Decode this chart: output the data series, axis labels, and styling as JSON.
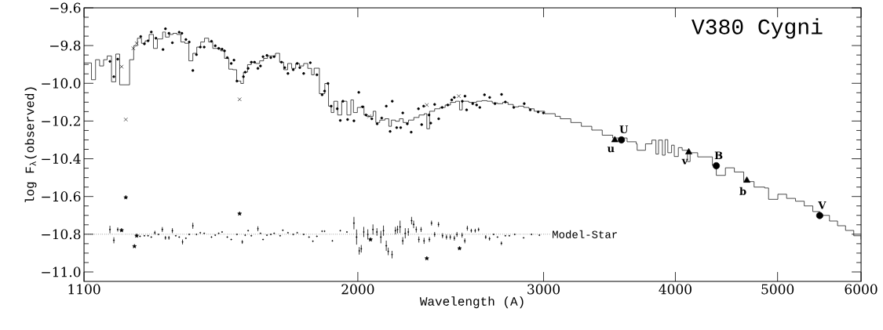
{
  "chart_data": {
    "type": "scatter",
    "title": "V380 Cygni",
    "xlabel": "Wavelength (A)",
    "ylabel": "log F$_{λ}$(observed)",
    "log": "x",
    "grid": false,
    "xlim": [
      1100,
      6000
    ],
    "xticks": [
      1100,
      2000,
      3000,
      4000,
      5000,
      6000
    ],
    "ylim": [
      -11.05,
      -9.6
    ],
    "yticks": [
      {
        "value": -9.6,
        "label": "−9.6"
      },
      {
        "value": -9.8,
        "label": "−9.8"
      },
      {
        "value": -10.0,
        "label": "−10.0"
      },
      {
        "value": -10.2,
        "label": "−10.2"
      },
      {
        "value": -10.4,
        "label": "−10.4"
      },
      {
        "value": -10.6,
        "label": "−10.6"
      },
      {
        "value": -10.8,
        "label": "−10.8"
      },
      {
        "value": -11.0,
        "label": "−11.0"
      }
    ],
    "ref_lines": [
      {
        "axis": "y",
        "value": -10.8,
        "label": "Model-Star",
        "line_style": "dotted",
        "color": "#000000"
      }
    ],
    "annotations": [
      {
        "text": "U",
        "x": 3556,
        "y": -10.3
      },
      {
        "text": "u",
        "x": 3505,
        "y": -10.301
      },
      {
        "text": "v",
        "x": 4119,
        "y": -10.365
      },
      {
        "text": "B",
        "x": 4374,
        "y": -10.437
      },
      {
        "text": "b",
        "x": 4676,
        "y": -10.515
      },
      {
        "text": "V",
        "x": 5482,
        "y": -10.701
      }
    ],
    "series": [
      {
        "type": "step",
        "color": "#000000",
        "line_style": "solid",
        "marker": "none",
        "x": [
          1100,
          1118,
          1128,
          1138,
          1148,
          1157,
          1168,
          1179,
          1189,
          1215,
          1226,
          1236,
          1247,
          1257,
          1268,
          1280,
          1291,
          1306,
          1314,
          1325,
          1336,
          1347,
          1359,
          1371,
          1383,
          1395,
          1407,
          1419,
          1431,
          1444,
          1457,
          1469,
          1482,
          1495,
          1509,
          1522,
          1535,
          1549,
          1558,
          1572,
          1585,
          1600,
          1614,
          1628,
          1642,
          1657,
          1671,
          1686,
          1701,
          1716,
          1731,
          1746,
          1761,
          1777,
          1793,
          1808,
          1818,
          1839,
          1861,
          1876,
          1887,
          1898,
          1914,
          1931,
          1953,
          1970,
          1981,
          1998,
          2015,
          2027,
          2039,
          2068,
          2080,
          2098,
          2122,
          2140,
          2152,
          2171,
          2190,
          2208,
          2234,
          2260,
          2286,
          2312,
          2325,
          2339,
          2365,
          2393,
          2420,
          2448,
          2476,
          2497,
          2512,
          2548,
          2592,
          2622,
          2652,
          2682,
          2713,
          2744,
          2776,
          2808,
          2840,
          2873,
          2906,
          2939,
          3007,
          3077,
          3112,
          3184,
          3258,
          3333,
          3410,
          3489,
          3600,
          3673,
          3680,
          3748,
          3801,
          3834,
          3856,
          3889,
          3912,
          3935,
          3968,
          3991,
          4026,
          4060,
          4107,
          4131,
          4200,
          4337,
          4374,
          4462,
          4550,
          4644,
          4750,
          4861,
          4903,
          5003,
          5100,
          5200,
          5300,
          5400,
          5482,
          5600,
          5700,
          5800,
          5905,
          6000
        ],
        "values": [
          -9.892,
          -9.981,
          -9.875,
          -9.908,
          -9.875,
          -9.855,
          -9.992,
          -9.845,
          -10.008,
          -9.875,
          -9.801,
          -9.761,
          -9.788,
          -9.775,
          -9.741,
          -9.815,
          -9.765,
          -9.728,
          -9.755,
          -9.741,
          -9.735,
          -9.741,
          -9.781,
          -9.788,
          -9.881,
          -9.841,
          -9.808,
          -9.781,
          -9.761,
          -9.781,
          -9.815,
          -9.815,
          -9.828,
          -9.868,
          -9.925,
          -9.928,
          -9.988,
          -10.001,
          -9.941,
          -9.901,
          -9.888,
          -9.895,
          -9.881,
          -9.868,
          -9.855,
          -9.855,
          -9.841,
          -9.888,
          -9.928,
          -9.895,
          -9.921,
          -9.895,
          -9.908,
          -9.895,
          -9.921,
          -9.955,
          -9.92,
          -10.055,
          -10.001,
          -10.121,
          -10.155,
          -10.095,
          -10.168,
          -10.095,
          -10.168,
          -10.088,
          -10.155,
          -10.128,
          -10.121,
          -10.168,
          -10.175,
          -10.148,
          -10.208,
          -10.195,
          -10.188,
          -10.228,
          -10.195,
          -10.201,
          -10.188,
          -10.208,
          -10.195,
          -10.181,
          -10.168,
          -10.161,
          -10.241,
          -10.148,
          -10.135,
          -10.128,
          -10.115,
          -10.101,
          -10.095,
          -10.141,
          -10.095,
          -10.101,
          -10.095,
          -10.092,
          -10.095,
          -10.104,
          -10.108,
          -10.101,
          -10.112,
          -10.125,
          -10.121,
          -10.128,
          -10.135,
          -10.148,
          -10.161,
          -10.175,
          -10.188,
          -10.208,
          -10.228,
          -10.248,
          -10.275,
          -10.29,
          -10.31,
          -10.321,
          -10.355,
          -10.321,
          -10.301,
          -10.375,
          -10.301,
          -10.381,
          -10.299,
          -10.368,
          -10.328,
          -10.388,
          -10.341,
          -10.355,
          -10.415,
          -10.368,
          -10.39,
          -10.435,
          -10.488,
          -10.448,
          -10.47,
          -10.521,
          -10.55,
          -10.555,
          -10.615,
          -10.588,
          -10.61,
          -10.625,
          -10.65,
          -10.68,
          -10.7,
          -10.73,
          -10.755,
          -10.78,
          -10.808,
          -10.828
        ]
      },
      {
        "type": "scatter",
        "color": "#000000",
        "marker": "circle",
        "x": [
          1164,
          1174,
          1184,
          1245,
          1255,
          1265,
          1274,
          1287,
          1307,
          1314,
          1324,
          1334,
          1354,
          1362,
          1374,
          1384,
          1395,
          1406,
          1418,
          1430,
          1453,
          1465,
          1476,
          1487,
          1495,
          1504,
          1517,
          1526,
          1536,
          1558,
          1564,
          1574,
          1585,
          1596,
          1608,
          1617,
          1626,
          1640,
          1654,
          1666,
          1693,
          1705,
          1717,
          1737,
          1752,
          1762,
          1777,
          1803,
          1829,
          1850,
          1860,
          1874,
          1887,
          1912,
          1925,
          1936,
          1956,
          1983,
          2004,
          2021,
          2036,
          2062,
          2086,
          2107,
          2128,
          2146,
          2156,
          2177,
          2196,
          2206,
          2228,
          2247,
          2283,
          2299,
          2309,
          2336,
          2345,
          2365,
          2386,
          2404,
          2434,
          2455,
          2469,
          2512,
          2527,
          2536,
          2570,
          2592,
          2610,
          2637,
          2667,
          2698,
          2737,
          2760,
          2811,
          2876,
          2914,
          2965,
          2999
        ],
        "values": [
          -9.884,
          -9.965,
          -9.872,
          -9.752,
          -9.791,
          -9.775,
          -9.728,
          -9.761,
          -9.821,
          -9.711,
          -9.735,
          -9.785,
          -9.729,
          -9.735,
          -9.768,
          -9.781,
          -9.932,
          -9.848,
          -9.808,
          -9.808,
          -9.777,
          -9.801,
          -9.815,
          -9.819,
          -9.828,
          -9.864,
          -9.895,
          -9.877,
          -9.988,
          -9.965,
          -9.941,
          -9.921,
          -9.888,
          -9.888,
          -9.921,
          -9.908,
          -9.859,
          -9.852,
          -9.864,
          -9.859,
          -9.888,
          -9.917,
          -9.948,
          -9.928,
          -9.895,
          -9.917,
          -9.948,
          -9.891,
          -9.955,
          -10.061,
          -10.041,
          -10.001,
          -10.121,
          -10.135,
          -10.197,
          -10.095,
          -10.192,
          -10.199,
          -10.048,
          -10.125,
          -10.168,
          -10.188,
          -10.215,
          -10.184,
          -10.121,
          -10.255,
          -10.095,
          -10.235,
          -10.235,
          -10.157,
          -10.215,
          -10.259,
          -10.135,
          -10.219,
          -10.121,
          -10.168,
          -10.211,
          -10.112,
          -10.188,
          -10.128,
          -10.115,
          -10.088,
          -10.075,
          -10.095,
          -10.068,
          -10.141,
          -10.108,
          -10.115,
          -10.128,
          -10.061,
          -10.075,
          -10.108,
          -10.059,
          -10.099,
          -10.128,
          -10.108,
          -10.141,
          -10.152,
          -10.157
        ]
      },
      {
        "type": "scatter",
        "color": "#000000",
        "marker": "cross",
        "x": [
          1194,
          1205,
          1225,
          1234,
          1545,
          2050,
          2325,
          2493
        ],
        "values": [
          -9.912,
          -10.192,
          -9.815,
          -9.788,
          -10.085,
          -10.175,
          -10.115,
          -10.068
        ]
      },
      {
        "type": "scatter",
        "color": "#000000",
        "marker": "circle",
        "x": [
          3556,
          4374,
          5482
        ],
        "values": [
          -10.3,
          -10.437,
          -10.701
        ]
      },
      {
        "type": "scatter",
        "color": "#000000",
        "marker": "triangle",
        "x": [
          3505,
          4119,
          4676
        ],
        "values": [
          -10.301,
          -10.365,
          -10.515
        ]
      },
      {
        "type": "scatter",
        "color": "#000000",
        "marker": "circle",
        "x": [
          1164,
          1174,
          1184,
          1243,
          1255,
          1265,
          1274,
          1284,
          1294,
          1305,
          1314,
          1324,
          1334,
          1344,
          1354,
          1364,
          1374,
          1384,
          1395,
          1406,
          1418,
          1430,
          1453,
          1465,
          1476,
          1487,
          1504,
          1517,
          1536,
          1554,
          1564,
          1574,
          1585,
          1608,
          1617,
          1626,
          1640,
          1654,
          1666,
          1688,
          1698,
          1717,
          1737,
          1752,
          1777,
          1798,
          1813,
          1829,
          1850,
          1860,
          1892,
          1925,
          1953,
          1983,
          1995,
          2006,
          2015,
          2026,
          2044,
          2067,
          2085,
          2103,
          2115,
          2128,
          2137,
          2155,
          2171,
          2181,
          2193,
          2206,
          2218,
          2233,
          2249,
          2259,
          2272,
          2285,
          2296,
          2311,
          2338,
          2349,
          2365,
          2385,
          2406,
          2427,
          2447,
          2469,
          2483,
          2511,
          2526,
          2540,
          2562,
          2584,
          2603,
          2644,
          2666,
          2690,
          2713,
          2736,
          2760,
          2784,
          2817,
          2872,
          2922,
          2973
        ],
        "values": [
          -10.775,
          -10.832,
          -10.775,
          -10.811,
          -10.808,
          -10.808,
          -10.815,
          -10.792,
          -10.801,
          -10.775,
          -10.819,
          -10.819,
          -10.781,
          -10.808,
          -10.815,
          -10.841,
          -10.821,
          -10.801,
          -10.755,
          -10.801,
          -10.792,
          -10.795,
          -10.815,
          -10.805,
          -10.795,
          -10.788,
          -10.815,
          -10.828,
          -10.801,
          -10.841,
          -10.805,
          -10.781,
          -10.808,
          -10.771,
          -10.795,
          -10.828,
          -10.805,
          -10.801,
          -10.795,
          -10.808,
          -10.779,
          -10.792,
          -10.801,
          -10.792,
          -10.801,
          -10.815,
          -10.837,
          -10.811,
          -10.784,
          -10.784,
          -10.835,
          -10.781,
          -10.788,
          -10.741,
          -10.815,
          -10.888,
          -10.877,
          -10.788,
          -10.801,
          -10.775,
          -10.788,
          -10.815,
          -10.781,
          -10.861,
          -10.891,
          -10.908,
          -10.781,
          -10.775,
          -10.761,
          -10.835,
          -10.795,
          -10.788,
          -10.728,
          -10.748,
          -10.775,
          -10.828,
          -10.775,
          -10.835,
          -10.828,
          -10.741,
          -10.801,
          -10.748,
          -10.808,
          -10.815,
          -10.815,
          -10.821,
          -10.801,
          -10.805,
          -10.835,
          -10.768,
          -10.781,
          -10.781,
          -10.775,
          -10.815,
          -10.824,
          -10.801,
          -10.815,
          -10.848,
          -10.808,
          -10.808,
          -10.801,
          -10.819,
          -10.801,
          -10.805
        ],
        "errors": [
          0.02,
          0.016,
          0.011,
          null,
          null,
          null,
          null,
          0.01,
          null,
          0.013,
          0.01,
          0.01,
          0.013,
          null,
          null,
          0.013,
          null,
          null,
          0.016,
          null,
          null,
          null,
          null,
          null,
          null,
          null,
          null,
          null,
          null,
          0.01,
          null,
          null,
          null,
          0.013,
          null,
          null,
          null,
          null,
          null,
          null,
          null,
          null,
          null,
          null,
          null,
          null,
          null,
          null,
          null,
          null,
          null,
          null,
          null,
          0.033,
          0.04,
          0.02,
          0.02,
          0.027,
          0.027,
          0.027,
          0.02,
          0.033,
          0.027,
          0.027,
          0.02,
          0.02,
          0.02,
          0.02,
          0.033,
          0.02,
          0.027,
          0.02,
          0.02,
          0.02,
          0.016,
          0.016,
          0.013,
          0.016,
          0.013,
          0.013,
          0.013,
          0.013,
          0.013,
          0.013,
          0.013,
          0.013,
          0.013,
          0.013,
          0.013,
          0.013,
          0.01,
          0.01,
          0.01,
          0.01,
          0.01,
          null,
          null,
          0.01,
          null,
          null,
          null,
          null,
          null,
          null
        ]
      },
      {
        "type": "scatter",
        "color": "#000000",
        "marker": "star",
        "x": [
          1194,
          1205,
          1228,
          1234,
          1545,
          2056,
          2325,
          2497
        ],
        "values": [
          -10.779,
          -10.605,
          -10.864,
          -10.808,
          -10.691,
          -10.828,
          -10.928,
          -10.875
        ]
      }
    ]
  }
}
